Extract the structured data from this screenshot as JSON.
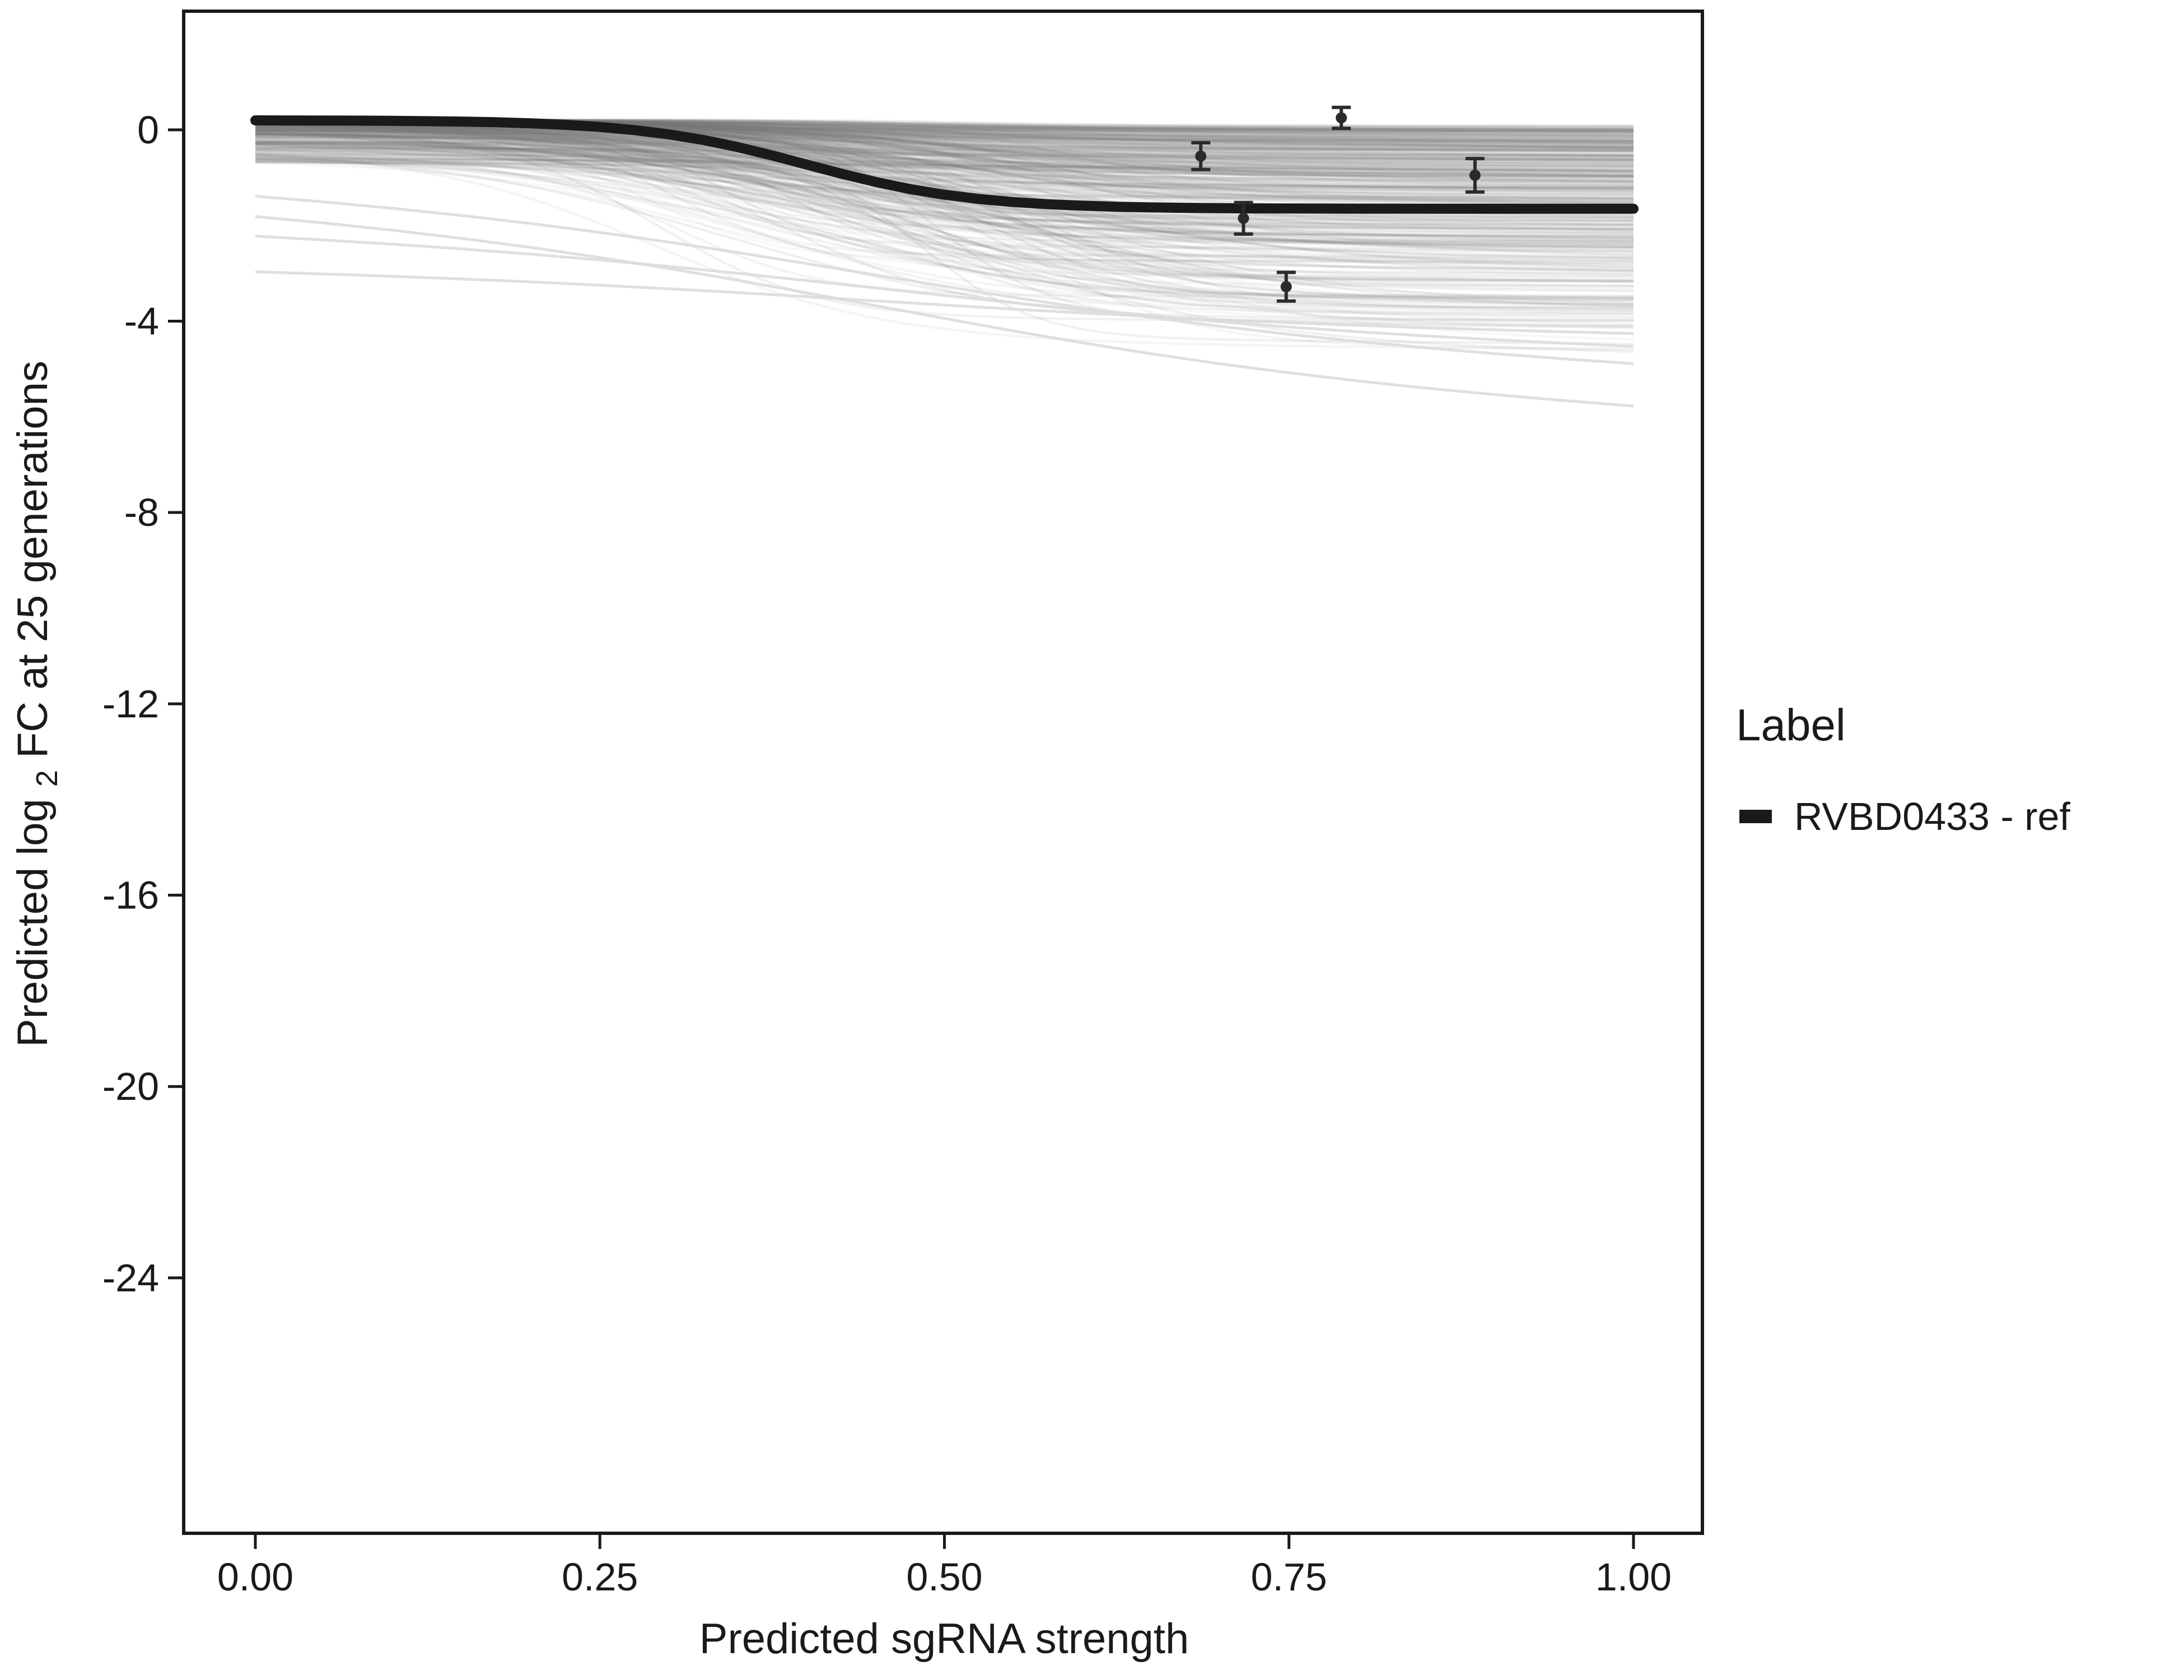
{
  "chart_data": {
    "type": "line",
    "title": "",
    "xlabel": "Predicted sgRNA strength",
    "ylabel": {
      "pre": "Predicted log",
      "sub": "2",
      "post": " FC at 25 generations"
    },
    "xlim": [
      -0.052,
      1.05
    ],
    "ylim": [
      -29.34,
      2.48
    ],
    "x_ticks": {
      "values": [
        0,
        0.25,
        0.5,
        0.75,
        1.0
      ],
      "labels": [
        "0.00",
        "0.25",
        "0.50",
        "0.75",
        "1.00"
      ]
    },
    "y_ticks": {
      "values": [
        0,
        -4,
        -8,
        -12,
        -16,
        -20,
        -24
      ],
      "labels": [
        "0",
        "-4",
        "-8",
        "-12",
        "-16",
        "-20",
        "-24"
      ]
    },
    "grid": false,
    "legend": {
      "title": "Label",
      "position": "right",
      "entries": [
        {
          "label": "RVBD0433 - ref",
          "color": "#1a1a1a"
        }
      ]
    },
    "ref_series": {
      "name": "RVBD0433 - ref",
      "color": "#1a1a1a",
      "x_start": 0,
      "x_step": 0.025,
      "y": [
        0.198,
        0.196,
        0.195,
        0.192,
        0.188,
        0.181,
        0.172,
        0.158,
        0.136,
        0.105,
        0.06,
        -0.005,
        -0.094,
        -0.212,
        -0.36,
        -0.535,
        -0.725,
        -0.915,
        -1.09,
        -1.238,
        -1.356,
        -1.445,
        -1.51,
        -1.555,
        -1.586,
        -1.608,
        -1.622,
        -1.631,
        -1.638,
        -1.642,
        -1.645,
        -1.646,
        -1.648,
        -1.648,
        -1.649,
        -1.649,
        -1.649,
        -1.65,
        -1.65,
        -1.65,
        -1.65
      ]
    },
    "points": [
      {
        "x": 0.686,
        "y": -0.55,
        "se": 0.28
      },
      {
        "x": 0.717,
        "y": -1.85,
        "se": 0.33
      },
      {
        "x": 0.788,
        "y": 0.25,
        "se": 0.22
      },
      {
        "x": 0.748,
        "y": -3.28,
        "se": 0.3
      },
      {
        "x": 0.885,
        "y": -0.95,
        "se": 0.35
      }
    ],
    "points_color": "#2b2b2b",
    "background": {
      "count": 430,
      "color": "#787878",
      "opacity": 0.07,
      "stroke_width": 4.5,
      "seed": 42,
      "outlier_color": "#dcdcdc",
      "outliers": [
        {
          "y0": -1.6,
          "y1": -5.9
        },
        {
          "y0": -2.1,
          "y1": -4.6
        },
        {
          "y0": -2.9,
          "y1": -4.3
        },
        {
          "y0": -1.2,
          "y1": -5.0
        }
      ]
    }
  }
}
